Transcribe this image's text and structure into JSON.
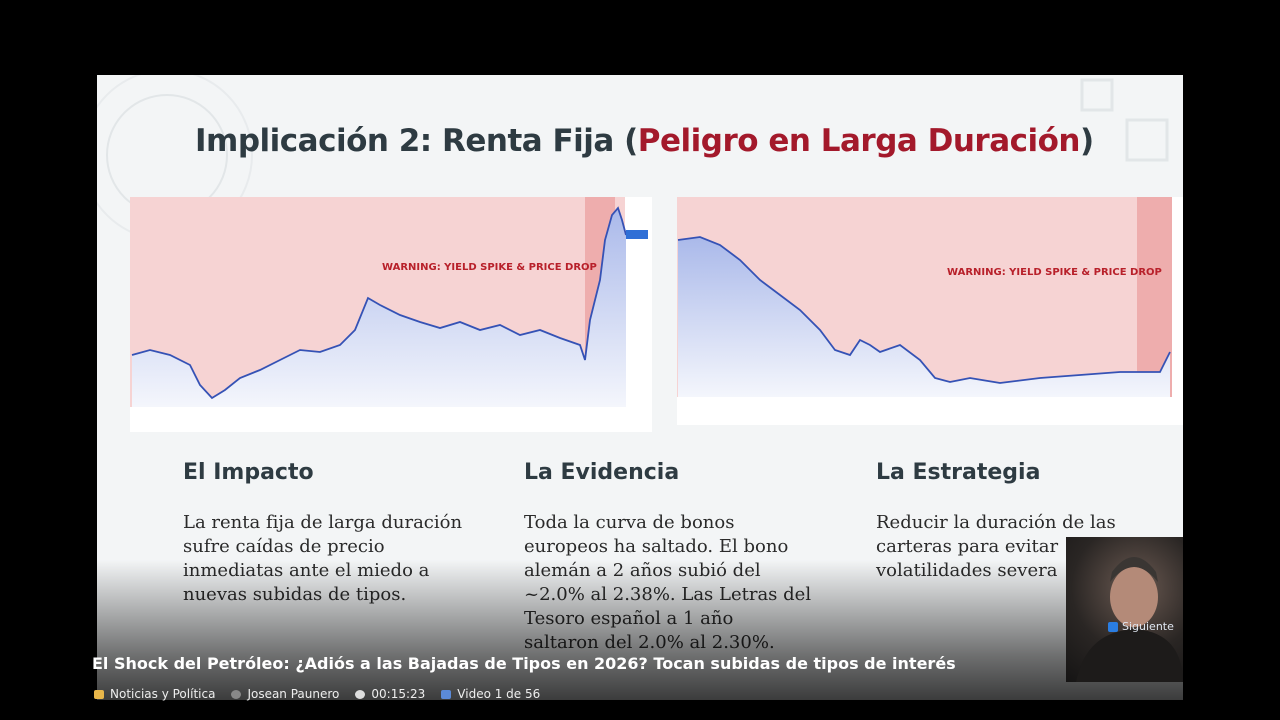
{
  "slide": {
    "title": {
      "prefix": "Implicación 2: Renta Fija (",
      "highlight": "Peligro en Larga Duración",
      "suffix": ")"
    },
    "charts": [
      {
        "warning": "WARNING: YIELD SPIKE & PRICE DROP"
      },
      {
        "warning": "WARNING: YIELD SPIKE & PRICE DROP"
      }
    ],
    "columns": [
      {
        "heading": "El Impacto",
        "body": [
          "La renta fija de larga duración",
          "sufre caídas de precio",
          "inmediatas ante el miedo a",
          "nuevas subidas de tipos."
        ]
      },
      {
        "heading": "La Evidencia",
        "body": [
          "Toda la curva de bonos",
          "europeos ha saltado. El bono",
          "alemán a 2 años subió del",
          "~2.0% al 2.38%. Las Letras del",
          "Tesoro español a 1 año",
          "saltaron del 2.0% al 2.30%."
        ]
      },
      {
        "heading": "La Estrategia",
        "body": [
          "Reducir la duración de las",
          "carteras para evitar",
          "volatilidades severa"
        ]
      }
    ]
  },
  "overlay": {
    "next_button": "Siguiente",
    "video_title": "El Shock del Petróleo: ¿Adiós a las Bajadas de Tipos en 2026? Tocan subidas de tipos de interés",
    "meta": {
      "category": "Noticias y Política",
      "author": "Josean Paunero",
      "duration": "00:15:23",
      "position": "Video 1 de 56"
    }
  }
}
